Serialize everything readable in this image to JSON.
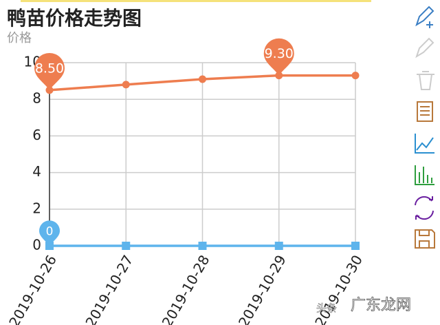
{
  "chart_data": {
    "type": "line",
    "title": "鸭苗价格走势图",
    "y_axis_label": "价格",
    "categories": [
      "2019-10-26",
      "2019-10-27",
      "2019-10-28",
      "2019-10-29",
      "2019-10-30"
    ],
    "series": [
      {
        "color": "#ee7d4f",
        "values": [
          8.5,
          8.8,
          9.1,
          9.3,
          9.3
        ],
        "value_labels": [
          "8.50",
          null,
          null,
          "9.30",
          null
        ]
      },
      {
        "color": "#5eb4ec",
        "values": [
          0,
          0,
          0,
          0,
          0
        ],
        "value_labels": [
          "0",
          null,
          null,
          null,
          null
        ]
      }
    ],
    "ylim": [
      0,
      10
    ],
    "yticks": [
      0,
      2,
      4,
      6,
      8,
      10
    ],
    "grid": true,
    "watermark": [
      "头条",
      "广东龙网"
    ]
  }
}
